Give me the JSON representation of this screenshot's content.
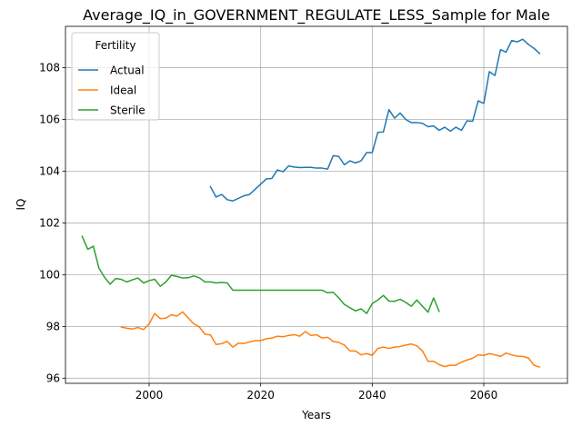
{
  "chart_data": {
    "type": "line",
    "title": "Average_IQ_in_GOVERNMENT_REGULATE_LESS_Sample for Male",
    "xlabel": "Years",
    "ylabel": "IQ",
    "xlim": [
      1985,
      2075
    ],
    "ylim": [
      95.8,
      109.6
    ],
    "x_ticks": [
      2000,
      2020,
      2040,
      2060
    ],
    "x_tick_labels": [
      "2000",
      "2020",
      "2040",
      "2060"
    ],
    "y_ticks": [
      96,
      98,
      100,
      102,
      104,
      106,
      108
    ],
    "y_tick_labels": [
      "96",
      "98",
      "100",
      "102",
      "104",
      "106",
      "108"
    ],
    "grid": true,
    "legend": {
      "title": "Fertility",
      "placement": "top-left"
    },
    "series": [
      {
        "name": "Actual",
        "color": "#1f77b4",
        "x": [
          2011,
          2012,
          2013,
          2014,
          2015,
          2016,
          2017,
          2018,
          2019,
          2020,
          2021,
          2022,
          2023,
          2024,
          2025,
          2026,
          2027,
          2028,
          2029,
          2030,
          2031,
          2032,
          2033,
          2034,
          2035,
          2036,
          2037,
          2038,
          2039,
          2040,
          2041,
          2042,
          2043,
          2044,
          2045,
          2046,
          2047,
          2048,
          2049,
          2050,
          2051,
          2052,
          2053,
          2054,
          2055,
          2056,
          2057,
          2058,
          2059,
          2060,
          2061,
          2062,
          2063,
          2064,
          2065,
          2066,
          2067,
          2068,
          2069,
          2070
        ],
        "y": [
          103.4,
          103.0,
          103.1,
          102.9,
          102.85,
          102.95,
          103.05,
          103.1,
          103.3,
          103.5,
          103.7,
          103.72,
          104.05,
          103.98,
          104.2,
          104.16,
          104.14,
          104.15,
          104.15,
          104.12,
          104.12,
          104.08,
          104.6,
          104.57,
          104.25,
          104.4,
          104.32,
          104.4,
          104.72,
          104.72,
          105.5,
          105.52,
          106.38,
          106.05,
          106.25,
          106.0,
          105.88,
          105.88,
          105.85,
          105.72,
          105.75,
          105.58,
          105.7,
          105.55,
          105.7,
          105.58,
          105.95,
          105.93,
          106.72,
          106.62,
          107.85,
          107.7,
          108.7,
          108.6,
          109.05,
          109.0,
          109.1,
          108.9,
          108.75,
          108.55
        ]
      },
      {
        "name": "Ideal",
        "color": "#ff7f0e",
        "x": [
          1995,
          1996,
          1997,
          1998,
          1999,
          2000,
          2001,
          2002,
          2003,
          2004,
          2005,
          2006,
          2007,
          2008,
          2009,
          2010,
          2011,
          2012,
          2013,
          2014,
          2015,
          2016,
          2017,
          2018,
          2019,
          2020,
          2021,
          2022,
          2023,
          2024,
          2025,
          2026,
          2027,
          2028,
          2029,
          2030,
          2031,
          2032,
          2033,
          2034,
          2035,
          2036,
          2037,
          2038,
          2039,
          2040,
          2041,
          2042,
          2043,
          2044,
          2045,
          2046,
          2047,
          2048,
          2049,
          2050,
          2051,
          2052,
          2053,
          2054,
          2055,
          2056,
          2057,
          2058,
          2059,
          2060,
          2061,
          2062,
          2063,
          2064,
          2065,
          2066,
          2067,
          2068,
          2069,
          2070
        ],
        "y": [
          97.98,
          97.93,
          97.9,
          97.96,
          97.88,
          98.1,
          98.5,
          98.3,
          98.32,
          98.45,
          98.4,
          98.56,
          98.33,
          98.1,
          97.98,
          97.7,
          97.67,
          97.3,
          97.33,
          97.42,
          97.2,
          97.35,
          97.34,
          97.4,
          97.45,
          97.45,
          97.52,
          97.55,
          97.62,
          97.6,
          97.65,
          97.68,
          97.62,
          97.8,
          97.65,
          97.68,
          97.55,
          97.58,
          97.42,
          97.38,
          97.28,
          97.05,
          97.05,
          96.9,
          96.95,
          96.88,
          97.15,
          97.2,
          97.15,
          97.2,
          97.22,
          97.28,
          97.32,
          97.25,
          97.05,
          96.65,
          96.65,
          96.52,
          96.45,
          96.5,
          96.5,
          96.62,
          96.7,
          96.77,
          96.9,
          96.88,
          96.95,
          96.9,
          96.84,
          96.97,
          96.9,
          96.85,
          96.84,
          96.78,
          96.5,
          96.43
        ]
      },
      {
        "name": "Sterile",
        "color": "#2ca02c",
        "x": [
          1988,
          1989,
          1990,
          1991,
          1992,
          1993,
          1994,
          1995,
          1996,
          1997,
          1998,
          1999,
          2000,
          2001,
          2002,
          2003,
          2004,
          2005,
          2006,
          2007,
          2008,
          2009,
          2010,
          2011,
          2012,
          2013,
          2014,
          2015,
          2016,
          2017,
          2018,
          2019,
          2020,
          2021,
          2022,
          2023,
          2024,
          2025,
          2026,
          2027,
          2028,
          2029,
          2030,
          2031,
          2032,
          2033,
          2034,
          2035,
          2036,
          2037,
          2038,
          2039,
          2040,
          2041,
          2042,
          2043,
          2044,
          2045,
          2046,
          2047,
          2048,
          2049,
          2050,
          2051,
          2052
        ],
        "y": [
          101.48,
          100.98,
          101.1,
          100.25,
          99.9,
          99.63,
          99.85,
          99.82,
          99.72,
          99.8,
          99.87,
          99.68,
          99.77,
          99.82,
          99.55,
          99.72,
          99.98,
          99.93,
          99.87,
          99.88,
          99.95,
          99.88,
          99.72,
          99.72,
          99.68,
          99.7,
          99.68,
          99.4,
          99.4,
          99.4,
          99.4,
          99.4,
          99.4,
          99.4,
          99.4,
          99.4,
          99.4,
          99.4,
          99.4,
          99.4,
          99.4,
          99.4,
          99.4,
          99.4,
          99.3,
          99.32,
          99.1,
          98.85,
          98.72,
          98.6,
          98.68,
          98.5,
          98.88,
          99.02,
          99.2,
          98.98,
          98.97,
          99.05,
          98.93,
          98.78,
          99.02,
          98.78,
          98.55,
          99.1,
          98.58
        ]
      }
    ]
  }
}
